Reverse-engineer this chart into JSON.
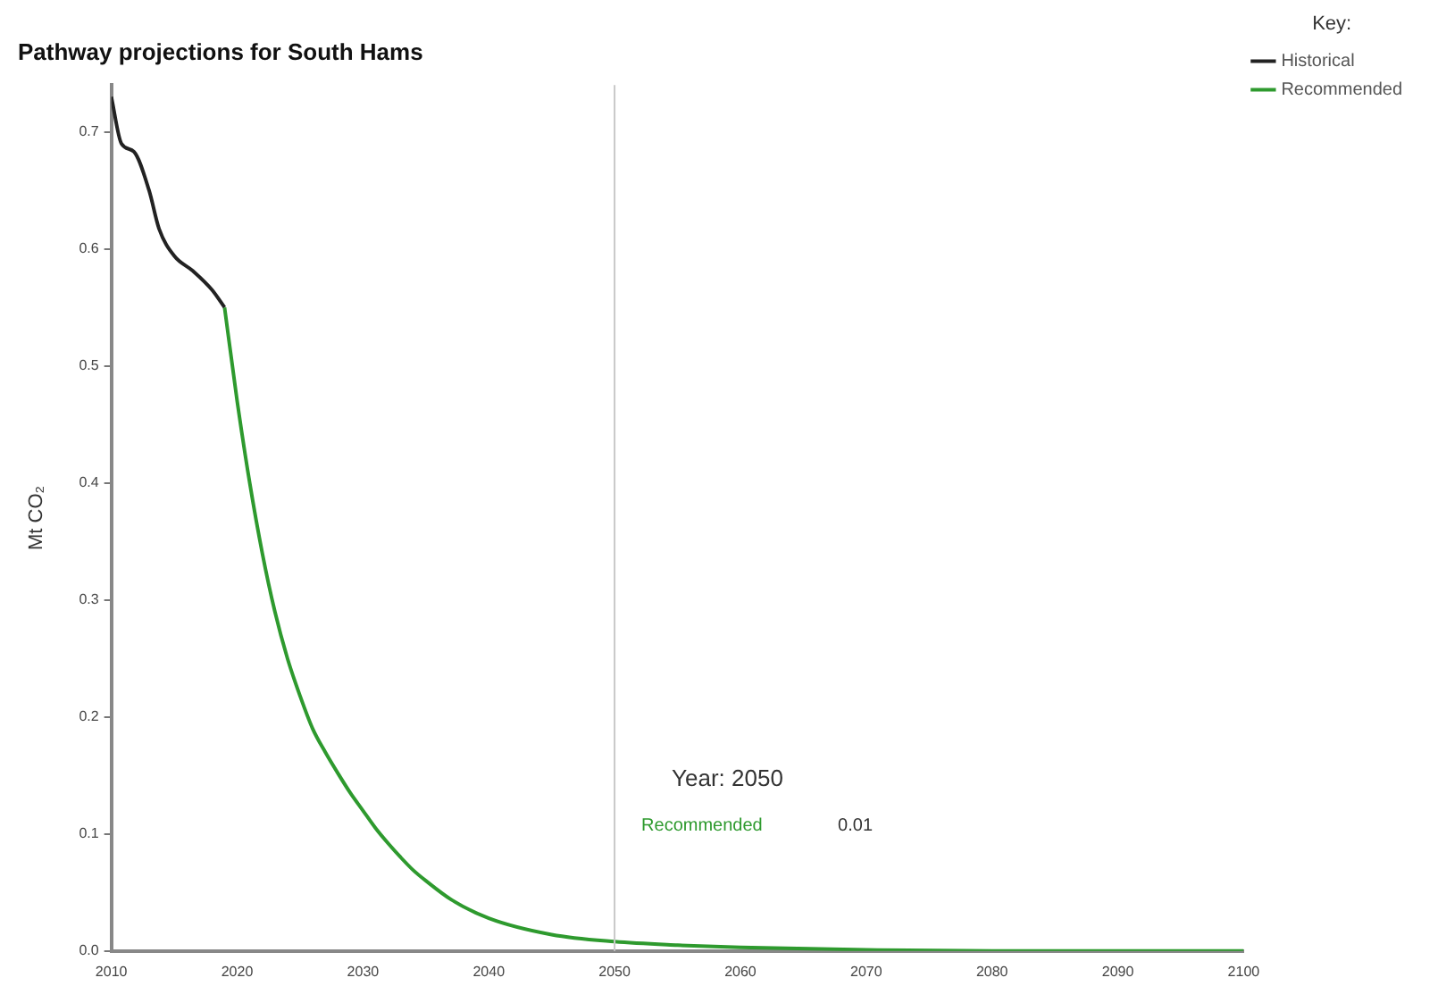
{
  "chart_data": {
    "type": "line",
    "title": "Pathway projections for South Hams",
    "ylabel": "Mt CO₂",
    "legend_title": "Key:",
    "legend": "top right",
    "grid": false,
    "marker": "none",
    "line_style": "solid",
    "xlim": [
      2010,
      2100
    ],
    "xticks": [
      2010,
      2020,
      2030,
      2040,
      2050,
      2060,
      2070,
      2080,
      2090,
      2100
    ],
    "ylim": [
      0,
      0.74
    ],
    "yticks": [
      {
        "value": 0,
        "label": "0.0"
      },
      0.1,
      0.2,
      0.3,
      0.4,
      0.5,
      0.6,
      0.7
    ],
    "series": [
      {
        "name": "Historical",
        "color": "#222222",
        "x": [
          2010,
          2010.8,
          2011.8,
          2013,
          2013.8,
          2015,
          2016.5,
          2018,
          2019
        ],
        "values": [
          0.73,
          0.69,
          0.683,
          0.65,
          0.617,
          0.594,
          0.581,
          0.565,
          0.55
        ]
      },
      {
        "name": "Recommended",
        "color": "#2e9a2e",
        "x": [
          2019,
          2020,
          2021,
          2022,
          2023,
          2024,
          2025,
          2026,
          2027,
          2028,
          2029,
          2030,
          2031,
          2032,
          2033,
          2034,
          2035,
          2037,
          2040,
          2045,
          2050,
          2055,
          2060,
          2070,
          2080,
          2090,
          2100
        ],
        "values": [
          0.55,
          0.47,
          0.4,
          0.34,
          0.29,
          0.25,
          0.218,
          0.19,
          0.17,
          0.152,
          0.135,
          0.12,
          0.105,
          0.092,
          0.08,
          0.069,
          0.06,
          0.044,
          0.028,
          0.014,
          0.008,
          0.005,
          0.003,
          0.001,
          0,
          0,
          0
        ]
      }
    ],
    "ref_lines": [
      {
        "axis": "x",
        "value": 2050,
        "color": "#c8c8c8"
      }
    ],
    "annotations": [
      "Year: 2050",
      "Recommended",
      "0.01"
    ]
  }
}
